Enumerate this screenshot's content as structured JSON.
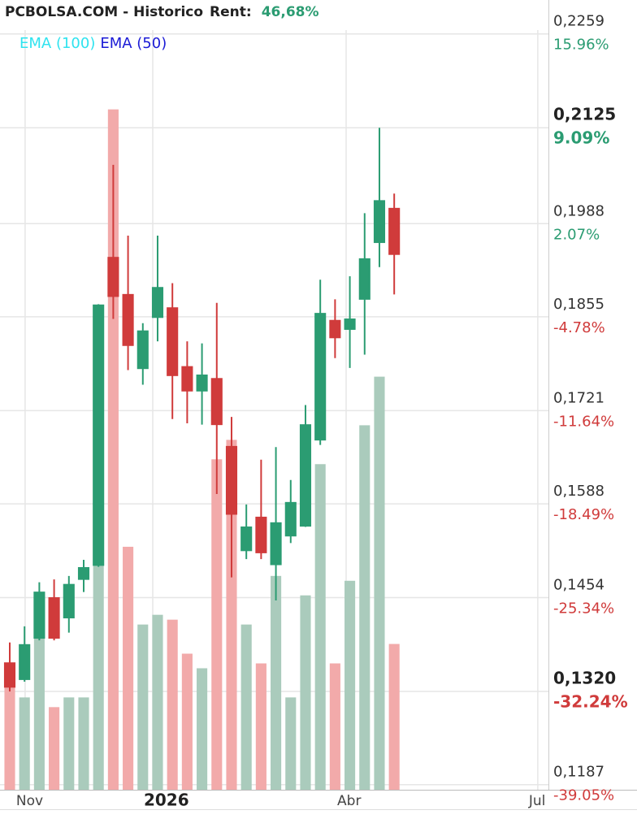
{
  "chart_data": {
    "type": "candlestick",
    "title": "PCBOLSA.COM - Historico",
    "rent_label": "Rent:",
    "rent_value": "46,68%",
    "indicators": [
      {
        "name": "EMA (100)",
        "color": "#2fe3ef"
      },
      {
        "name": "EMA (50)",
        "color": "#1b1bd6"
      }
    ],
    "x": [
      0,
      1,
      2,
      3,
      4,
      5,
      6,
      7,
      8,
      9,
      10,
      11,
      12,
      13,
      14,
      15,
      16,
      17,
      18,
      19,
      20,
      21,
      22,
      23,
      24,
      25,
      26
    ],
    "open": [
      0.1361,
      0.1337,
      0.1396,
      0.1454,
      0.1425,
      0.148,
      0.15,
      0.194,
      0.1887,
      0.1781,
      0.1854,
      0.1868,
      0.1784,
      0.1749,
      0.1767,
      0.167,
      0.1521,
      0.1569,
      0.1501,
      0.1542,
      0.1556,
      0.1679,
      0.185,
      0.1837,
      0.188,
      0.1961,
      0.201
    ],
    "high": [
      0.139,
      0.1413,
      0.1476,
      0.148,
      0.1485,
      0.1508,
      0.1873,
      0.2072,
      0.1971,
      0.1846,
      0.1971,
      0.1903,
      0.182,
      0.1817,
      0.1875,
      0.1712,
      0.1587,
      0.1651,
      0.1669,
      0.1622,
      0.1729,
      0.1908,
      0.188,
      0.1913,
      0.2003,
      0.2125,
      0.2031
    ],
    "low": [
      0.132,
      0.1334,
      0.1393,
      0.1393,
      0.1404,
      0.1462,
      0.1498,
      0.1852,
      0.1779,
      0.1758,
      0.182,
      0.1709,
      0.1703,
      0.1701,
      0.1602,
      0.1483,
      0.1509,
      0.1509,
      0.145,
      0.1532,
      0.1555,
      0.1672,
      0.1796,
      0.1782,
      0.1801,
      0.1926,
      0.1887
    ],
    "close": [
      0.1326,
      0.1387,
      0.1462,
      0.1396,
      0.1473,
      0.1497,
      0.1872,
      0.1884,
      0.1814,
      0.1835,
      0.1897,
      0.1771,
      0.1749,
      0.1772,
      0.1701,
      0.1573,
      0.1555,
      0.1518,
      0.1561,
      0.159,
      0.1701,
      0.186,
      0.1825,
      0.1852,
      0.1938,
      0.2021,
      0.1944
    ],
    "volume": [
      21,
      19,
      34,
      17,
      19,
      19,
      99,
      140,
      50,
      34,
      36,
      35,
      28,
      25,
      68,
      72,
      34,
      26,
      44,
      19,
      40,
      67,
      26,
      43,
      75,
      85,
      30
    ],
    "up_color": "#2b9c72",
    "down_color": "#d03b3b",
    "volume_up_color": "#aacbbc",
    "volume_down_color": "#f2aaaa",
    "volume_lim": [
      0,
      160
    ],
    "xlim": [
      -0.659,
      36.43
    ],
    "xticks": [
      {
        "value": 1.04,
        "label": "Nov"
      },
      {
        "value": 9.67,
        "label": "2026"
      },
      {
        "value": 22.75,
        "label": "Abr"
      },
      {
        "value": 35.71,
        "label": "Jul"
      }
    ],
    "ylim": [
      0.1182,
      0.229
    ],
    "yticks": [
      {
        "value": 0.2259,
        "label": "0,2259"
      },
      {
        "value": 0.2125,
        "label": "0,2125"
      },
      {
        "value": 0.1988,
        "label": "0,1988"
      },
      {
        "value": 0.1855,
        "label": "0,1855"
      },
      {
        "value": 0.1721,
        "label": "0,1721"
      },
      {
        "value": 0.1588,
        "label": "0,1588"
      },
      {
        "value": 0.1454,
        "label": "0,1454"
      },
      {
        "value": 0.132,
        "label": "0,1320"
      },
      {
        "value": 0.1187,
        "label": "0,1187"
      }
    ],
    "ytick_pct_labels": [
      "15.96%",
      "9.09%",
      "2.07%",
      "-4.78%",
      "-11.64%",
      "-18.49%",
      "-25.34%",
      "-32.24%",
      "-39.05%"
    ],
    "grid": true
  }
}
